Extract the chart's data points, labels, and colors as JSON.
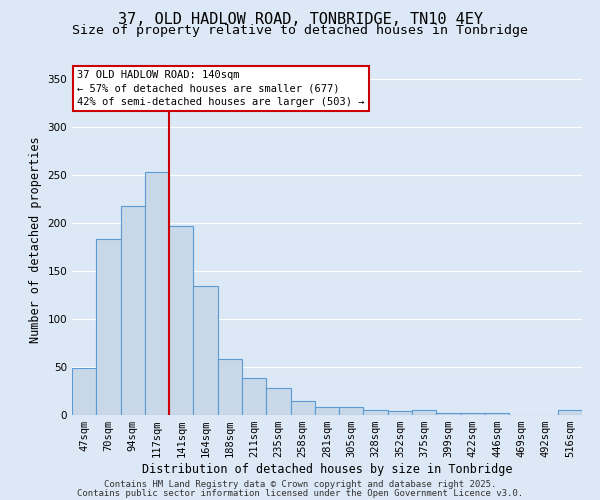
{
  "title": "37, OLD HADLOW ROAD, TONBRIDGE, TN10 4EY",
  "subtitle": "Size of property relative to detached houses in Tonbridge",
  "xlabel": "Distribution of detached houses by size in Tonbridge",
  "ylabel": "Number of detached properties",
  "categories": [
    "47sqm",
    "70sqm",
    "94sqm",
    "117sqm",
    "141sqm",
    "164sqm",
    "188sqm",
    "211sqm",
    "235sqm",
    "258sqm",
    "281sqm",
    "305sqm",
    "328sqm",
    "352sqm",
    "375sqm",
    "399sqm",
    "422sqm",
    "446sqm",
    "469sqm",
    "492sqm",
    "516sqm"
  ],
  "values": [
    49,
    184,
    218,
    253,
    197,
    135,
    58,
    39,
    28,
    15,
    8,
    8,
    5,
    4,
    5,
    2,
    2,
    2,
    0,
    0,
    5
  ],
  "bar_color": "#c8d8e8",
  "bar_edge_color": "#5b9bd5",
  "background_color": "#dce8f5",
  "grid_color": "#ffffff",
  "vline_color": "#cc0000",
  "annotation_title": "37 OLD HADLOW ROAD: 140sqm",
  "annotation_line1": "← 57% of detached houses are smaller (677)",
  "annotation_line2": "42% of semi-detached houses are larger (503) →",
  "annotation_box_color": "#ffffff",
  "annotation_box_edge": "#cc0000",
  "footer_line1": "Contains HM Land Registry data © Crown copyright and database right 2025.",
  "footer_line2": "Contains public sector information licensed under the Open Government Licence v3.0.",
  "ylim": [
    0,
    365
  ],
  "yticks": [
    0,
    50,
    100,
    150,
    200,
    250,
    300,
    350
  ],
  "title_fontsize": 11,
  "subtitle_fontsize": 9.5,
  "axis_label_fontsize": 8.5,
  "tick_fontsize": 7.5,
  "footer_fontsize": 6.5,
  "annotation_fontsize": 7.5
}
